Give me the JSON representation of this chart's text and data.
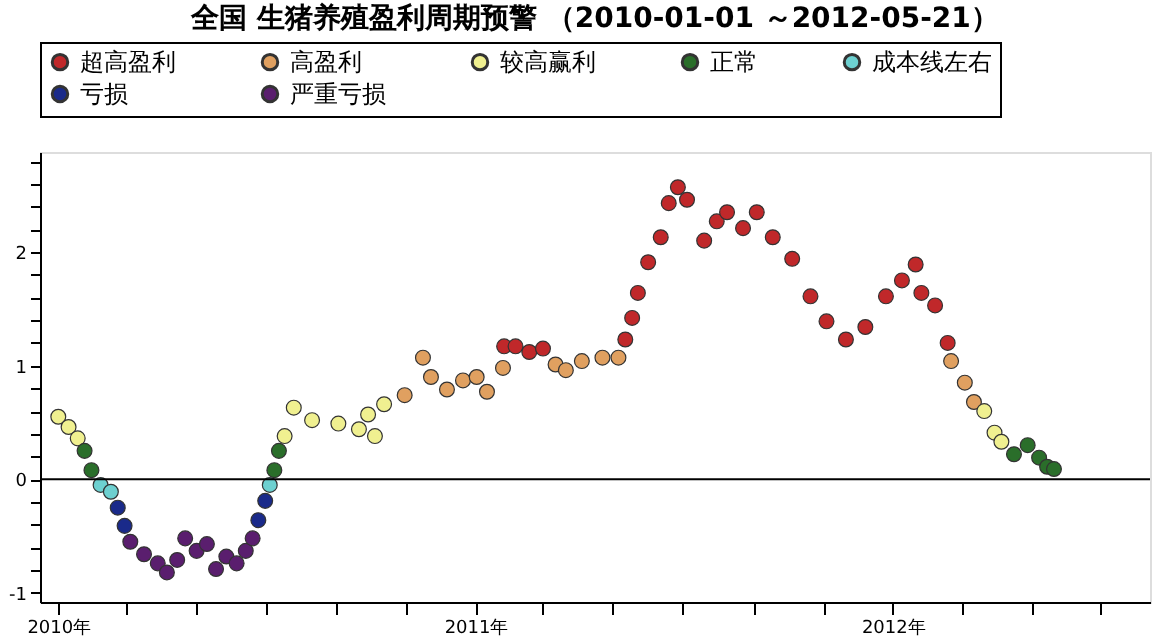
{
  "chart_data": {
    "type": "scatter",
    "title": "全国 生猪养殖盈利周期预警 （2010-01-01 ～2012-05-21）",
    "xlim": [
      "2009-12-16",
      "2012-08-13"
    ],
    "xticks": [
      {
        "value": "2010-01-01",
        "label": "2010年"
      },
      {
        "value": "2010-03-01",
        "label": null
      },
      {
        "value": "2010-05-01",
        "label": null
      },
      {
        "value": "2010-07-01",
        "label": null
      },
      {
        "value": "2010-09-01",
        "label": null
      },
      {
        "value": "2010-11-01",
        "label": null
      },
      {
        "value": "2011-01-01",
        "label": "2011年"
      },
      {
        "value": "2011-03-01",
        "label": null
      },
      {
        "value": "2011-05-01",
        "label": null
      },
      {
        "value": "2011-07-01",
        "label": null
      },
      {
        "value": "2011-09-01",
        "label": null
      },
      {
        "value": "2011-11-01",
        "label": null
      },
      {
        "value": "2012-01-01",
        "label": "2012年"
      },
      {
        "value": "2012-03-01",
        "label": null
      },
      {
        "value": "2012-05-01",
        "label": null
      },
      {
        "value": "2012-07-01",
        "label": null
      }
    ],
    "ylim": [
      -1.08,
      2.88
    ],
    "yticks": [
      -1,
      {
        "value": -0.8,
        "label": null
      },
      {
        "value": -0.6,
        "label": null
      },
      {
        "value": -0.4,
        "label": null
      },
      {
        "value": -0.2,
        "label": null
      },
      0,
      {
        "value": 0.2,
        "label": null
      },
      {
        "value": 0.4,
        "label": null
      },
      {
        "value": 0.6,
        "label": null
      },
      {
        "value": 0.8,
        "label": null
      },
      1,
      {
        "value": 1.2,
        "label": null
      },
      {
        "value": 1.4,
        "label": null
      },
      {
        "value": 1.6,
        "label": null
      },
      {
        "value": 1.8,
        "label": null
      },
      2,
      {
        "value": 2.2,
        "label": null
      },
      {
        "value": 2.4,
        "label": null
      },
      {
        "value": 2.6,
        "label": null
      },
      {
        "value": 2.8,
        "label": null
      }
    ],
    "grid": false,
    "legend": "top",
    "marker": "circle",
    "ref_lines": [
      {
        "axis": "y",
        "value": 0,
        "color": "#000000"
      }
    ],
    "series": [
      {
        "name": "超高盈利",
        "color": "#c0282a",
        "x": [
          "2011-01-26",
          "2011-02-05",
          "2011-02-17",
          "2011-03-01",
          "2011-05-12",
          "2011-05-18",
          "2011-05-23",
          "2011-06-01",
          "2011-06-12",
          "2011-06-19",
          "2011-06-27",
          "2011-07-05",
          "2011-07-20",
          "2011-07-31",
          "2011-08-09",
          "2011-08-23",
          "2011-09-04",
          "2011-09-18",
          "2011-10-05",
          "2011-10-21",
          "2011-11-04",
          "2011-11-21",
          "2011-12-08",
          "2011-12-26",
          "2012-01-09",
          "2012-01-21",
          "2012-01-26",
          "2012-02-07",
          "2012-02-18"
        ],
        "values": [
          1.17,
          1.17,
          1.12,
          1.15,
          1.23,
          1.42,
          1.64,
          1.91,
          2.13,
          2.43,
          2.57,
          2.46,
          2.1,
          2.27,
          2.35,
          2.21,
          2.35,
          2.13,
          1.94,
          1.61,
          1.39,
          1.23,
          1.34,
          1.61,
          1.75,
          1.89,
          1.64,
          1.53,
          1.2
        ]
      },
      {
        "name": "高盈利",
        "color": "#e0a060",
        "x": [
          "2010-10-31",
          "2010-11-16",
          "2010-11-23",
          "2010-12-07",
          "2010-12-21",
          "2011-01-02",
          "2011-01-11",
          "2011-01-25",
          "2011-03-12",
          "2011-03-21",
          "2011-04-04",
          "2011-04-22",
          "2011-05-06",
          "2012-02-21",
          "2012-03-04",
          "2012-03-12"
        ],
        "values": [
          0.74,
          1.07,
          0.9,
          0.79,
          0.87,
          0.9,
          0.77,
          0.98,
          1.01,
          0.96,
          1.04,
          1.07,
          1.07,
          1.04,
          0.85,
          0.68
        ]
      },
      {
        "name": "较高赢利",
        "color": "#f0f090",
        "x": [
          "2010-01-01",
          "2010-01-10",
          "2010-01-18",
          "2010-07-18",
          "2010-07-26",
          "2010-08-11",
          "2010-09-03",
          "2010-09-21",
          "2010-09-29",
          "2010-10-05",
          "2010-10-13",
          "2012-03-21",
          "2012-03-30",
          "2012-04-05"
        ],
        "values": [
          0.55,
          0.46,
          0.36,
          0.38,
          0.63,
          0.52,
          0.49,
          0.44,
          0.57,
          0.38,
          0.66,
          0.6,
          0.41,
          0.33
        ]
      },
      {
        "name": "正常",
        "color": "#2a6e2a",
        "x": [
          "2010-01-24",
          "2010-01-30",
          "2010-07-09",
          "2010-07-13",
          "2012-04-16",
          "2012-04-28",
          "2012-05-08",
          "2012-05-15",
          "2012-05-21"
        ],
        "values": [
          0.25,
          0.08,
          0.08,
          0.25,
          0.22,
          0.3,
          0.19,
          0.11,
          0.09
        ]
      },
      {
        "name": "成本线左右",
        "color": "#6dd0d0",
        "x": [
          "2010-02-07",
          "2010-02-16",
          "2010-07-05"
        ],
        "values": [
          -0.05,
          -0.11,
          -0.05
        ]
      },
      {
        "name": "亏损",
        "color": "#1a2a8a",
        "x": [
          "2010-02-22",
          "2010-02-28",
          "2010-06-25",
          "2010-07-01"
        ],
        "values": [
          -0.25,
          -0.41,
          -0.36,
          -0.19
        ]
      },
      {
        "name": "严重亏损",
        "color": "#5a1e6e",
        "x": [
          "2010-03-05",
          "2010-03-17",
          "2010-03-29",
          "2010-04-06",
          "2010-04-15",
          "2010-04-22",
          "2010-05-02",
          "2010-05-11",
          "2010-05-19",
          "2010-05-28",
          "2010-06-06",
          "2010-06-14",
          "2010-06-20"
        ],
        "values": [
          -0.55,
          -0.66,
          -0.74,
          -0.82,
          -0.71,
          -0.52,
          -0.63,
          -0.57,
          -0.79,
          -0.68,
          -0.74,
          -0.63,
          -0.52
        ]
      }
    ]
  }
}
